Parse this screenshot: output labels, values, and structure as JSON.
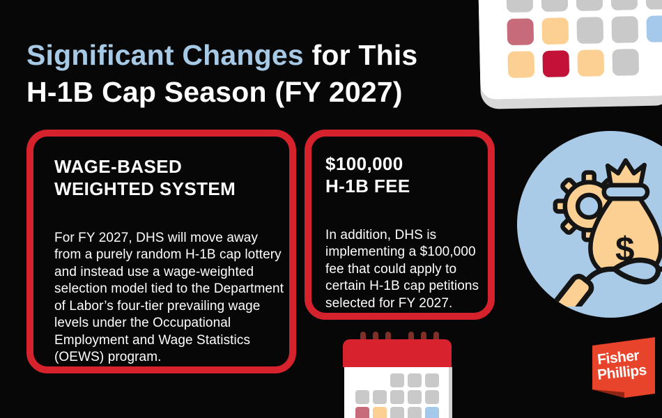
{
  "title": {
    "highlight": "Significant Changes",
    "line1_rest": " for This",
    "line2": "H-1B Cap Season (FY 2027)"
  },
  "cards": [
    {
      "heading_line1": "WAGE-BASED",
      "heading_line2": "WEIGHTED SYSTEM",
      "body": "For FY 2027, DHS will move away from a purely random H-1B cap lottery and instead use a wage-weighted selection model tied to the Department of Labor’s four-tier prevailing wage levels under the Occupational Employment and Wage Statistics (OEWS) program."
    },
    {
      "heading_line1": "$100,000",
      "heading_line2": "H-1B FEE",
      "body": "In addition, DHS is implementing a $100,000 fee that could apply to certain H-1B cap petitions selected for FY 2027."
    }
  ],
  "logo": {
    "line1": "Fisher",
    "line2": "Phillips"
  },
  "icons": {
    "top_calendar": "calendar-month-grid",
    "bottom_calendar": "desk-calendar-with-spiral-rings",
    "money": "hand-holding-money-bag-with-gear",
    "dollar_sign": "$"
  },
  "colors": {
    "background": "#070707",
    "accent_red": "#d5222d",
    "title_blue": "#a6c9e6",
    "white": "#ffffff",
    "circle_blue": "#a9cbe8",
    "peach": "#fbd092",
    "gray": "#c9c9c9",
    "rose": "#c76b7b",
    "crimson": "#c31238",
    "blue": "#a5c9ea",
    "ring_maroon": "#7d2f28",
    "calendar_header_red": "#d8232f",
    "logo_red": "#e8432b",
    "logo_fold": "#8e2413"
  },
  "calendar_top": {
    "rows": [
      [
        "gray",
        "gray",
        "gray",
        "gray",
        "gray"
      ],
      [
        "rose",
        "peach",
        "gray",
        "gray",
        "blue"
      ],
      [
        "peach",
        "crimson",
        "peach",
        "gray",
        null
      ]
    ]
  },
  "calendar_bottom": {
    "rows": [
      [
        null,
        null,
        "gray",
        "gray",
        "gray"
      ],
      [
        "gray",
        "gray",
        "gray",
        "gray",
        "gray"
      ],
      [
        "rose",
        "peach",
        "gray",
        "gray",
        "blue"
      ]
    ]
  }
}
